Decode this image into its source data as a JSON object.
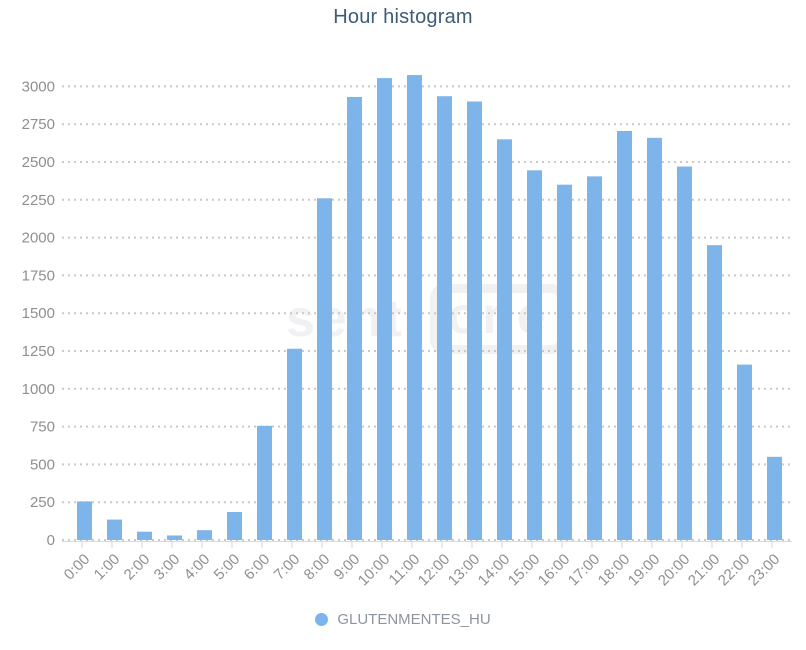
{
  "title": "Hour histogram",
  "watermark": {
    "text_left": "senti",
    "text_boxed": "one"
  },
  "legend": {
    "label": "GLUTENMENTES_HU"
  },
  "colors": {
    "bar": "#7db4ea",
    "title_text": "#3e5c76",
    "axis_text": "#8f8f8f",
    "grid_dots": "#c9c9c9",
    "axis_line": "#d3dae2",
    "tick": "#c9d7e6",
    "watermark": "#f1f1f3",
    "legend_text": "#8d959d"
  },
  "chart_data": {
    "type": "bar",
    "title": "Hour histogram",
    "categories": [
      "0:00",
      "1:00",
      "2:00",
      "3:00",
      "4:00",
      "5:00",
      "6:00",
      "7:00",
      "8:00",
      "9:00",
      "10:00",
      "11:00",
      "12:00",
      "13:00",
      "14:00",
      "15:00",
      "16:00",
      "17:00",
      "18:00",
      "19:00",
      "20:00",
      "21:00",
      "22:00",
      "23:00"
    ],
    "series": [
      {
        "name": "GLUTENMENTES_HU",
        "values": [
          255,
          135,
          55,
          30,
          65,
          185,
          755,
          1265,
          2260,
          2930,
          3055,
          3075,
          2935,
          2900,
          2650,
          2445,
          2350,
          2405,
          2705,
          2660,
          2470,
          1950,
          1160,
          550
        ]
      }
    ],
    "xlabel": "",
    "ylabel": "",
    "ylim": [
      0,
      3250
    ],
    "yticks": [
      0,
      250,
      500,
      750,
      1000,
      1250,
      1500,
      1750,
      2000,
      2250,
      2500,
      2750,
      3000
    ],
    "grid": "horizontal-dotted",
    "legend_position": "bottom-center",
    "x_tick_label_rotation": -45
  }
}
